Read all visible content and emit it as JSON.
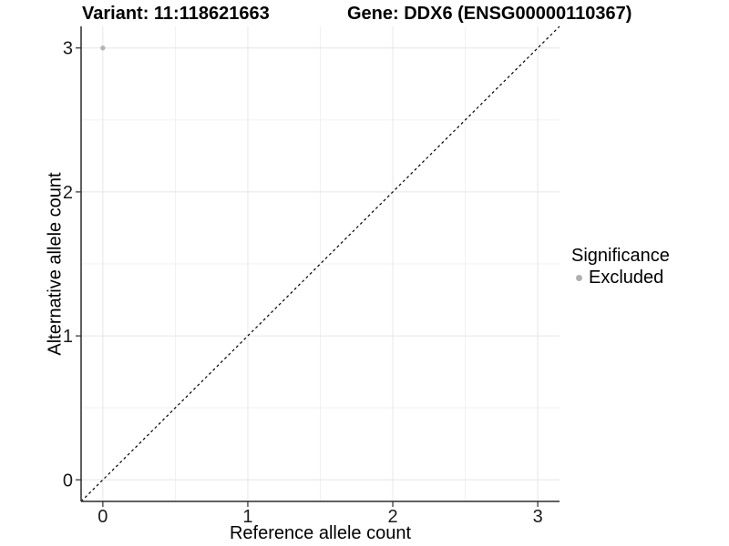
{
  "title": {
    "variant": "Variant: 11:118621663",
    "gene": "Gene: DDX6 (ENSG00000110367)"
  },
  "chart_data": {
    "type": "scatter",
    "title": "Variant: 11:118621663    Gene: DDX6 (ENSG00000110367)",
    "xlabel": "Reference allele count",
    "ylabel": "Alternative allele count",
    "xlim": [
      -0.15,
      3.15
    ],
    "ylim": [
      -0.15,
      3.15
    ],
    "xticks": [
      0,
      1,
      2,
      3
    ],
    "yticks": [
      0,
      1,
      2,
      3
    ],
    "minor_ticks": [
      0.5,
      1.5,
      2.5
    ],
    "grid": "major+minor",
    "points": [
      {
        "x": 0,
        "y": 3,
        "series": "Excluded"
      }
    ],
    "reference_line": {
      "type": "identity",
      "slope": 1,
      "intercept": 0,
      "style": "dashed",
      "color": "#000000"
    },
    "legend": {
      "title": "Significance",
      "position": "right",
      "entries": [
        {
          "label": "Excluded",
          "color": "#b3b3b3"
        }
      ]
    },
    "colors": {
      "point": "#b5b5b5",
      "grid_major": "#e6e6e6",
      "grid_minor": "#f1f1f1",
      "axis_line": "#2b2b2b",
      "tick_label": "#1a1a1a"
    }
  }
}
